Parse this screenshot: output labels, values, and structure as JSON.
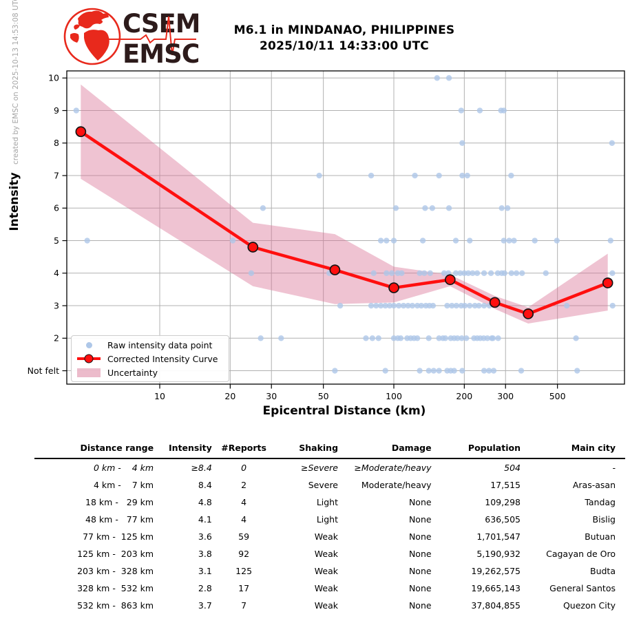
{
  "credit": "created by EMSC on 2025-10-13 14:53:08 UTC",
  "logo": {
    "line1": "CSEM",
    "line2": "EMSC",
    "brand_red": "#e8291c",
    "text_color": "#2d1b1b"
  },
  "title": {
    "line1": "M6.1 in MINDANAO, PHILIPPINES",
    "line2": "2025/10/11 14:33:00 UTC"
  },
  "legend": {
    "raw": "Raw intensity data point",
    "curve": "Corrected Intensity Curve",
    "band": "Uncertainty"
  },
  "chart_data": {
    "type": "scatter",
    "x_scale": "log",
    "xlabel": "Epicentral Distance (km)",
    "ylabel": "Intensity",
    "xlim": [
      4.0,
      960
    ],
    "ylim": [
      0.58,
      10.22
    ],
    "x_ticks": [
      10,
      20,
      30,
      50,
      100,
      200,
      300,
      500
    ],
    "y_ticks": [
      {
        "v": 10,
        "label": "10"
      },
      {
        "v": 9,
        "label": "9"
      },
      {
        "v": 8,
        "label": "8"
      },
      {
        "v": 7,
        "label": "7"
      },
      {
        "v": 6,
        "label": "6"
      },
      {
        "v": 5,
        "label": "5"
      },
      {
        "v": 4,
        "label": "4"
      },
      {
        "v": 3,
        "label": "3"
      },
      {
        "v": 2,
        "label": "2"
      },
      {
        "v": 1,
        "label": "Not felt"
      }
    ],
    "grid": true,
    "legend_position": "lower left",
    "colors": {
      "raw_point": "#aec7e8",
      "curve": "#ff0f0f",
      "marker_fill": "#ff0f0f",
      "marker_edge": "#141414",
      "band": "#d87093",
      "gridline": "#b0b0b0",
      "frame": "#000000"
    },
    "corrected_curve": {
      "x_km": [
        4.6,
        25,
        56,
        100,
        174,
        270,
        375,
        820
      ],
      "intensity": [
        8.35,
        4.8,
        4.1,
        3.55,
        3.8,
        3.1,
        2.75,
        3.7
      ]
    },
    "uncertainty_band": {
      "x_km": [
        4.6,
        25,
        56,
        100,
        174,
        270,
        375,
        820
      ],
      "upper": [
        9.8,
        5.55,
        5.2,
        4.2,
        3.95,
        3.3,
        2.95,
        4.6
      ],
      "lower": [
        6.9,
        3.6,
        3.05,
        3.1,
        3.6,
        2.9,
        2.45,
        2.85
      ]
    },
    "raw_points": [
      [
        153,
        10
      ],
      [
        172,
        10
      ],
      [
        4.4,
        9
      ],
      [
        194,
        9
      ],
      [
        233,
        9
      ],
      [
        287,
        9
      ],
      [
        295,
        9
      ],
      [
        196,
        8
      ],
      [
        855,
        8
      ],
      [
        48,
        7
      ],
      [
        80,
        7
      ],
      [
        123,
        7
      ],
      [
        156,
        7
      ],
      [
        196,
        7
      ],
      [
        206,
        7
      ],
      [
        317,
        7
      ],
      [
        27.6,
        6
      ],
      [
        102,
        6
      ],
      [
        136,
        6
      ],
      [
        146,
        6
      ],
      [
        172,
        6
      ],
      [
        289,
        6
      ],
      [
        306,
        6
      ],
      [
        4.9,
        5
      ],
      [
        20.5,
        5
      ],
      [
        88,
        5
      ],
      [
        93,
        5
      ],
      [
        100,
        5
      ],
      [
        133,
        5
      ],
      [
        184,
        5
      ],
      [
        211,
        5
      ],
      [
        295,
        5
      ],
      [
        311,
        5
      ],
      [
        326,
        5
      ],
      [
        400,
        5
      ],
      [
        497,
        5
      ],
      [
        843,
        5
      ],
      [
        24.6,
        4
      ],
      [
        53,
        4
      ],
      [
        82,
        4
      ],
      [
        93,
        4
      ],
      [
        98,
        4
      ],
      [
        104,
        4
      ],
      [
        108,
        4
      ],
      [
        129,
        4
      ],
      [
        135,
        4
      ],
      [
        143,
        4
      ],
      [
        164,
        4
      ],
      [
        171,
        4
      ],
      [
        184,
        4
      ],
      [
        192,
        4
      ],
      [
        200,
        4
      ],
      [
        208,
        4
      ],
      [
        217,
        4
      ],
      [
        227,
        4
      ],
      [
        243,
        4
      ],
      [
        260,
        4
      ],
      [
        278,
        4
      ],
      [
        289,
        4
      ],
      [
        297,
        4
      ],
      [
        318,
        4
      ],
      [
        334,
        4
      ],
      [
        353,
        4
      ],
      [
        446,
        4
      ],
      [
        858,
        4
      ],
      [
        59,
        3
      ],
      [
        80,
        3
      ],
      [
        84,
        3
      ],
      [
        88,
        3
      ],
      [
        92,
        3
      ],
      [
        96,
        3
      ],
      [
        100,
        3
      ],
      [
        105,
        3
      ],
      [
        110,
        3
      ],
      [
        115,
        3
      ],
      [
        120,
        3
      ],
      [
        126,
        3
      ],
      [
        131,
        3
      ],
      [
        137,
        3
      ],
      [
        142,
        3
      ],
      [
        147,
        3
      ],
      [
        169,
        3
      ],
      [
        177,
        3
      ],
      [
        185,
        3
      ],
      [
        194,
        3
      ],
      [
        201,
        3
      ],
      [
        211,
        3
      ],
      [
        222,
        3
      ],
      [
        231,
        3
      ],
      [
        243,
        3
      ],
      [
        256,
        3
      ],
      [
        548,
        3
      ],
      [
        860,
        3
      ],
      [
        27,
        2
      ],
      [
        33,
        2
      ],
      [
        76,
        2
      ],
      [
        81,
        2
      ],
      [
        86,
        2
      ],
      [
        100,
        2
      ],
      [
        104,
        2
      ],
      [
        107,
        2
      ],
      [
        114,
        2
      ],
      [
        118,
        2
      ],
      [
        122,
        2
      ],
      [
        126,
        2
      ],
      [
        141,
        2
      ],
      [
        156,
        2
      ],
      [
        162,
        2
      ],
      [
        166,
        2
      ],
      [
        175,
        2
      ],
      [
        181,
        2
      ],
      [
        187,
        2
      ],
      [
        195,
        2
      ],
      [
        204,
        2
      ],
      [
        220,
        2
      ],
      [
        227,
        2
      ],
      [
        234,
        2
      ],
      [
        242,
        2
      ],
      [
        251,
        2
      ],
      [
        262,
        2
      ],
      [
        265,
        2
      ],
      [
        279,
        2
      ],
      [
        600,
        2
      ],
      [
        56,
        1
      ],
      [
        92,
        1
      ],
      [
        129,
        1
      ],
      [
        141,
        1
      ],
      [
        148,
        1
      ],
      [
        156,
        1
      ],
      [
        169,
        1
      ],
      [
        175,
        1
      ],
      [
        181,
        1
      ],
      [
        196,
        1
      ],
      [
        243,
        1
      ],
      [
        255,
        1
      ],
      [
        267,
        1
      ],
      [
        350,
        1
      ],
      [
        607,
        1
      ]
    ]
  },
  "table": {
    "headers": [
      "Distance range",
      "Intensity",
      "#Reports",
      "Shaking",
      "Damage",
      "Population",
      "Main city"
    ],
    "rows": [
      [
        "  0 km -    4 km",
        "≥8.4",
        "0",
        "≥Severe",
        "≥Moderate/heavy",
        "504",
        "-"
      ],
      [
        "  4 km -    7 km",
        "8.4",
        "2",
        "Severe",
        "Moderate/heavy",
        "17,515",
        "Aras-asan"
      ],
      [
        " 18 km -   29 km",
        "4.8",
        "4",
        "Light",
        "None",
        "109,298",
        "Tandag"
      ],
      [
        " 48 km -   77 km",
        "4.1",
        "4",
        "Light",
        "None",
        "636,505",
        "Bislig"
      ],
      [
        " 77 km -  125 km",
        "3.6",
        "59",
        "Weak",
        "None",
        "1,701,547",
        "Butuan"
      ],
      [
        "125 km -  203 km",
        "3.8",
        "92",
        "Weak",
        "None",
        "5,190,932",
        "Cagayan de Oro"
      ],
      [
        "203 km -  328 km",
        "3.1",
        "125",
        "Weak",
        "None",
        "19,262,575",
        "Budta"
      ],
      [
        "328 km -  532 km",
        "2.8",
        "17",
        "Weak",
        "None",
        "19,665,143",
        "General Santos"
      ],
      [
        "532 km -  863 km",
        "3.7",
        "7",
        "Weak",
        "None",
        "37,804,855",
        "Quezon City"
      ]
    ]
  }
}
